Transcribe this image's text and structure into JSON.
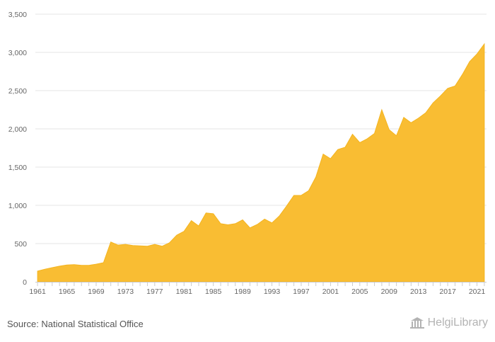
{
  "footer": {
    "source": "Source: National Statistical Office",
    "brand": "HelgiLibrary",
    "brand_icon": "library-building-icon"
  },
  "colors": {
    "area_fill": "#f9bd33",
    "area_stroke": "#f4b41f",
    "grid": "#e6e6e6",
    "axis": "#cccccc",
    "tick_text": "#666666"
  },
  "chart_data": {
    "type": "area",
    "title": "",
    "xlabel": "",
    "ylabel": "",
    "ylim": [
      0,
      3500
    ],
    "yticks": [
      0,
      500,
      1000,
      1500,
      2000,
      2500,
      3000,
      3500
    ],
    "ytick_labels": [
      "0",
      "500",
      "1,000",
      "1,500",
      "2,000",
      "2,500",
      "3,000",
      "3,500"
    ],
    "xtick_labels": [
      "1961",
      "1965",
      "1969",
      "1973",
      "1977",
      "1981",
      "1985",
      "1989",
      "1993",
      "1997",
      "2001",
      "2005",
      "2009",
      "2013",
      "2017",
      "2021"
    ],
    "grid": true,
    "legend": "none",
    "x": [
      1961,
      1962,
      1963,
      1964,
      1965,
      1966,
      1967,
      1968,
      1969,
      1970,
      1971,
      1972,
      1973,
      1974,
      1975,
      1976,
      1977,
      1978,
      1979,
      1980,
      1981,
      1982,
      1983,
      1984,
      1985,
      1986,
      1987,
      1988,
      1989,
      1990,
      1991,
      1992,
      1993,
      1994,
      1995,
      1996,
      1997,
      1998,
      1999,
      2000,
      2001,
      2002,
      2003,
      2004,
      2005,
      2006,
      2007,
      2008,
      2009,
      2010,
      2011,
      2012,
      2013,
      2014,
      2015,
      2016,
      2017,
      2018,
      2019,
      2020,
      2021,
      2022
    ],
    "series": [
      {
        "values": [
          140,
          165,
          185,
          205,
          220,
          225,
          215,
          215,
          230,
          250,
          520,
          480,
          490,
          475,
          470,
          465,
          490,
          465,
          510,
          610,
          660,
          800,
          730,
          900,
          890,
          760,
          745,
          760,
          810,
          705,
          750,
          820,
          770,
          860,
          990,
          1130,
          1130,
          1190,
          1370,
          1670,
          1610,
          1730,
          1760,
          1930,
          1820,
          1870,
          1940,
          2250,
          1990,
          1910,
          2150,
          2080,
          2140,
          2210,
          2340,
          2430,
          2530,
          2560,
          2710,
          2880,
          2980,
          3110
        ]
      }
    ]
  }
}
